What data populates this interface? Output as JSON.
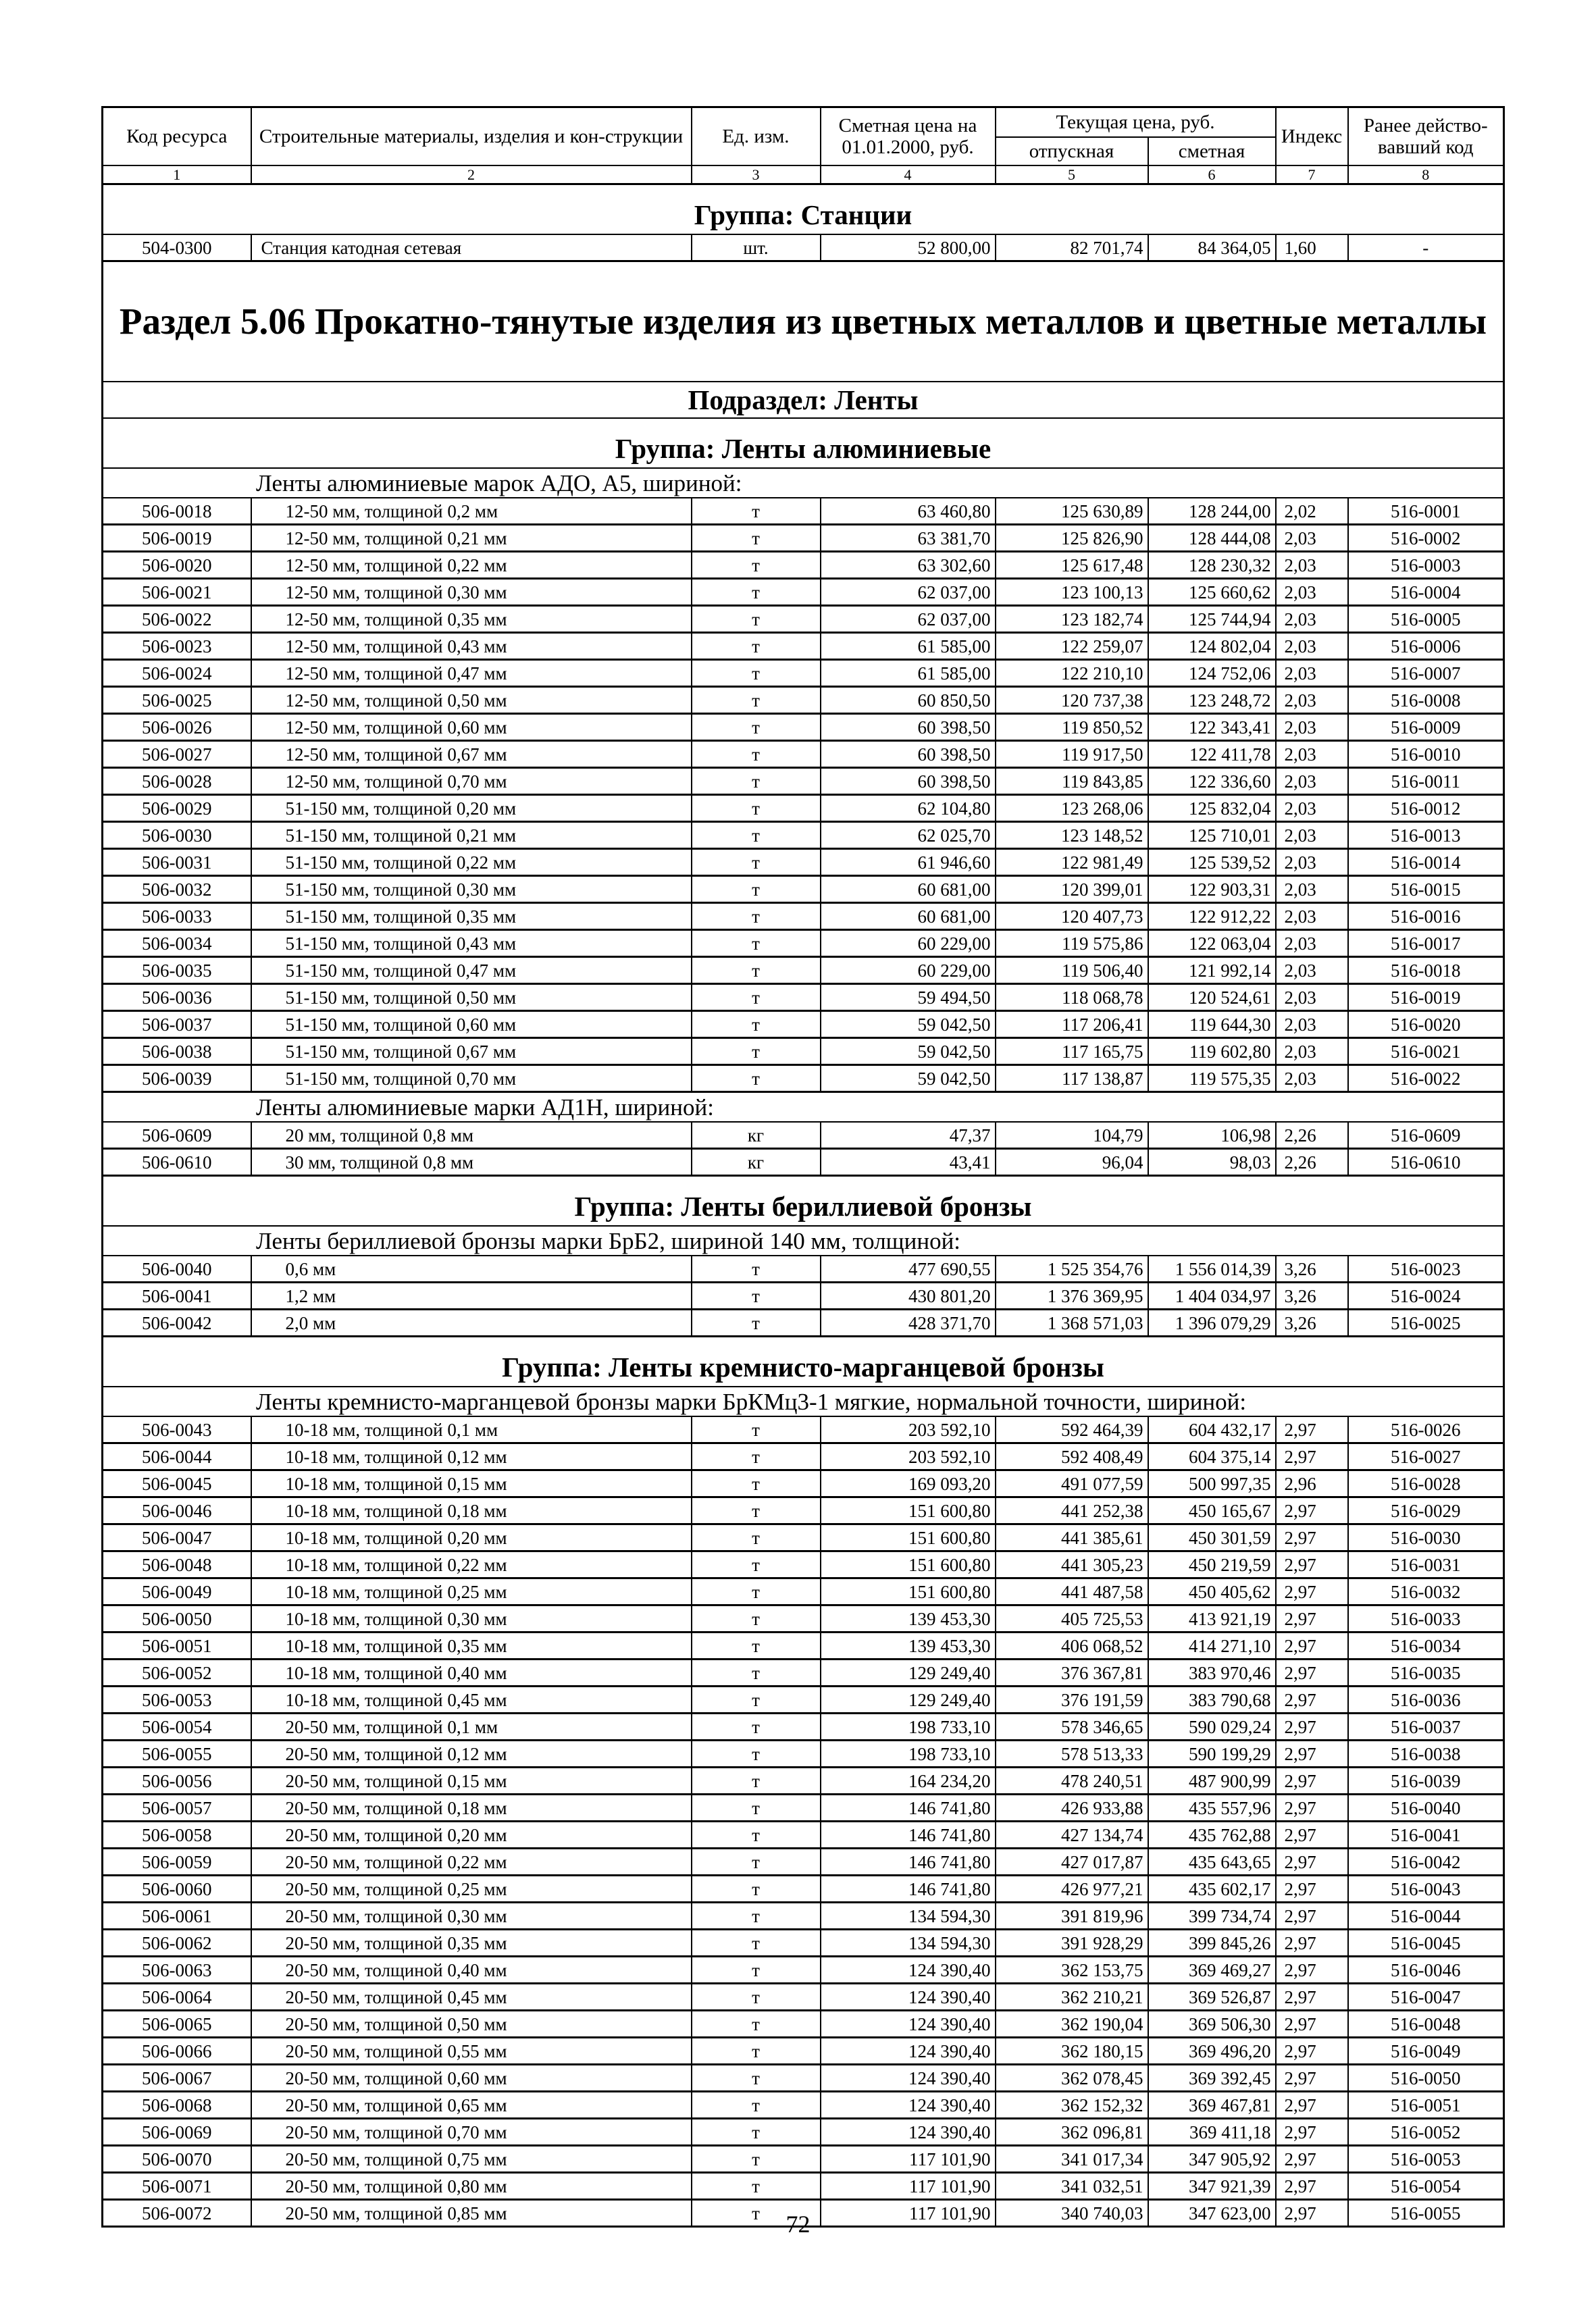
{
  "header": {
    "code": "Код ресурса",
    "name": "Строительные материалы, изделия и кон-струкции",
    "unit": "Ед. изм.",
    "base_price": "Сметная цена на 01.01.2000, руб.",
    "current_price": "Текущая цена, руб.",
    "release": "отпускная",
    "estimate": "сметная",
    "index": "Индекс",
    "old_code": "Ранее действо-вавший код",
    "numbers": [
      "1",
      "2",
      "3",
      "4",
      "5",
      "6",
      "7",
      "8"
    ]
  },
  "blocks": [
    {
      "type": "grp",
      "text": "Группа: Станции"
    },
    {
      "type": "rows",
      "plain": true,
      "rows": [
        [
          "504-0300",
          "Станция катодная сетевая",
          "шт.",
          "52 800,00",
          "82 701,74",
          "84 364,05",
          "1,60",
          "-"
        ]
      ]
    },
    {
      "type": "sec",
      "text": "Раздел 5.06 Прокатно-тянутые изделия из цветных металлов и цветные металлы"
    },
    {
      "type": "sub",
      "text": "Подраздел: Ленты"
    },
    {
      "type": "grp",
      "text": "Группа: Ленты алюминиевые"
    },
    {
      "type": "desc",
      "text": "Ленты алюминиевые марок АДО, А5, шириной:"
    },
    {
      "type": "rows",
      "rows": [
        [
          "506-0018",
          "12-50 мм, толщиной 0,2 мм",
          "т",
          "63 460,80",
          "125 630,89",
          "128 244,00",
          "2,02",
          "516-0001"
        ],
        [
          "506-0019",
          "12-50 мм, толщиной 0,21 мм",
          "т",
          "63 381,70",
          "125 826,90",
          "128 444,08",
          "2,03",
          "516-0002"
        ],
        [
          "506-0020",
          "12-50 мм, толщиной 0,22 мм",
          "т",
          "63 302,60",
          "125 617,48",
          "128 230,32",
          "2,03",
          "516-0003"
        ],
        [
          "506-0021",
          "12-50 мм, толщиной 0,30 мм",
          "т",
          "62 037,00",
          "123 100,13",
          "125 660,62",
          "2,03",
          "516-0004"
        ],
        [
          "506-0022",
          "12-50 мм, толщиной 0,35 мм",
          "т",
          "62 037,00",
          "123 182,74",
          "125 744,94",
          "2,03",
          "516-0005"
        ],
        [
          "506-0023",
          "12-50 мм, толщиной 0,43 мм",
          "т",
          "61 585,00",
          "122 259,07",
          "124 802,04",
          "2,03",
          "516-0006"
        ],
        [
          "506-0024",
          "12-50 мм, толщиной 0,47 мм",
          "т",
          "61 585,00",
          "122 210,10",
          "124 752,06",
          "2,03",
          "516-0007"
        ],
        [
          "506-0025",
          "12-50 мм, толщиной 0,50 мм",
          "т",
          "60 850,50",
          "120 737,38",
          "123 248,72",
          "2,03",
          "516-0008"
        ],
        [
          "506-0026",
          "12-50 мм, толщиной 0,60 мм",
          "т",
          "60 398,50",
          "119 850,52",
          "122 343,41",
          "2,03",
          "516-0009"
        ],
        [
          "506-0027",
          "12-50 мм, толщиной 0,67 мм",
          "т",
          "60 398,50",
          "119 917,50",
          "122 411,78",
          "2,03",
          "516-0010"
        ],
        [
          "506-0028",
          "12-50 мм, толщиной 0,70 мм",
          "т",
          "60 398,50",
          "119 843,85",
          "122 336,60",
          "2,03",
          "516-0011"
        ],
        [
          "506-0029",
          "51-150 мм, толщиной 0,20 мм",
          "т",
          "62 104,80",
          "123 268,06",
          "125 832,04",
          "2,03",
          "516-0012"
        ],
        [
          "506-0030",
          "51-150 мм, толщиной 0,21 мм",
          "т",
          "62 025,70",
          "123 148,52",
          "125 710,01",
          "2,03",
          "516-0013"
        ],
        [
          "506-0031",
          "51-150 мм, толщиной 0,22 мм",
          "т",
          "61 946,60",
          "122 981,49",
          "125 539,52",
          "2,03",
          "516-0014"
        ],
        [
          "506-0032",
          "51-150 мм, толщиной 0,30 мм",
          "т",
          "60 681,00",
          "120 399,01",
          "122 903,31",
          "2,03",
          "516-0015"
        ],
        [
          "506-0033",
          "51-150 мм, толщиной 0,35 мм",
          "т",
          "60 681,00",
          "120 407,73",
          "122 912,22",
          "2,03",
          "516-0016"
        ],
        [
          "506-0034",
          "51-150 мм, толщиной 0,43 мм",
          "т",
          "60 229,00",
          "119 575,86",
          "122 063,04",
          "2,03",
          "516-0017"
        ],
        [
          "506-0035",
          "51-150 мм, толщиной 0,47 мм",
          "т",
          "60 229,00",
          "119 506,40",
          "121 992,14",
          "2,03",
          "516-0018"
        ],
        [
          "506-0036",
          "51-150 мм, толщиной 0,50 мм",
          "т",
          "59 494,50",
          "118 068,78",
          "120 524,61",
          "2,03",
          "516-0019"
        ],
        [
          "506-0037",
          "51-150 мм, толщиной 0,60 мм",
          "т",
          "59 042,50",
          "117 206,41",
          "119 644,30",
          "2,03",
          "516-0020"
        ],
        [
          "506-0038",
          "51-150 мм, толщиной 0,67 мм",
          "т",
          "59 042,50",
          "117 165,75",
          "119 602,80",
          "2,03",
          "516-0021"
        ],
        [
          "506-0039",
          "51-150 мм, толщиной 0,70 мм",
          "т",
          "59 042,50",
          "117 138,87",
          "119 575,35",
          "2,03",
          "516-0022"
        ]
      ]
    },
    {
      "type": "desc",
      "text": "Ленты алюминиевые марки АД1Н, шириной:"
    },
    {
      "type": "rows",
      "rows": [
        [
          "506-0609",
          "20 мм, толщиной 0,8 мм",
          "кг",
          "47,37",
          "104,79",
          "106,98",
          "2,26",
          "516-0609"
        ],
        [
          "506-0610",
          "30 мм, толщиной 0,8 мм",
          "кг",
          "43,41",
          "96,04",
          "98,03",
          "2,26",
          "516-0610"
        ]
      ]
    },
    {
      "type": "grp",
      "text": "Группа: Ленты бериллиевой бронзы"
    },
    {
      "type": "desc",
      "text": "Ленты бериллиевой бронзы марки БрБ2, шириной 140 мм, толщиной:"
    },
    {
      "type": "rows",
      "rows": [
        [
          "506-0040",
          "0,6 мм",
          "т",
          "477 690,55",
          "1 525 354,76",
          "1 556 014,39",
          "3,26",
          "516-0023"
        ],
        [
          "506-0041",
          "1,2 мм",
          "т",
          "430 801,20",
          "1 376 369,95",
          "1 404 034,97",
          "3,26",
          "516-0024"
        ],
        [
          "506-0042",
          "2,0 мм",
          "т",
          "428 371,70",
          "1 368 571,03",
          "1 396 079,29",
          "3,26",
          "516-0025"
        ]
      ]
    },
    {
      "type": "grp",
      "text": "Группа: Ленты кремнисто-марганцевой бронзы"
    },
    {
      "type": "desc",
      "text": "Ленты кремнисто-марганцевой бронзы марки БрКМц3-1 мягкие, нормальной точности, шириной:"
    },
    {
      "type": "rows",
      "rows": [
        [
          "506-0043",
          "10-18 мм, толщиной 0,1 мм",
          "т",
          "203 592,10",
          "592 464,39",
          "604 432,17",
          "2,97",
          "516-0026"
        ],
        [
          "506-0044",
          "10-18 мм, толщиной 0,12 мм",
          "т",
          "203 592,10",
          "592 408,49",
          "604 375,14",
          "2,97",
          "516-0027"
        ],
        [
          "506-0045",
          "10-18 мм, толщиной 0,15 мм",
          "т",
          "169 093,20",
          "491 077,59",
          "500 997,35",
          "2,96",
          "516-0028"
        ],
        [
          "506-0046",
          "10-18 мм, толщиной 0,18 мм",
          "т",
          "151 600,80",
          "441 252,38",
          "450 165,67",
          "2,97",
          "516-0029"
        ],
        [
          "506-0047",
          "10-18 мм, толщиной 0,20 мм",
          "т",
          "151 600,80",
          "441 385,61",
          "450 301,59",
          "2,97",
          "516-0030"
        ],
        [
          "506-0048",
          "10-18 мм, толщиной 0,22 мм",
          "т",
          "151 600,80",
          "441 305,23",
          "450 219,59",
          "2,97",
          "516-0031"
        ],
        [
          "506-0049",
          "10-18 мм, толщиной 0,25 мм",
          "т",
          "151 600,80",
          "441 487,58",
          "450 405,62",
          "2,97",
          "516-0032"
        ],
        [
          "506-0050",
          "10-18 мм, толщиной 0,30 мм",
          "т",
          "139 453,30",
          "405 725,53",
          "413 921,19",
          "2,97",
          "516-0033"
        ],
        [
          "506-0051",
          "10-18 мм, толщиной 0,35 мм",
          "т",
          "139 453,30",
          "406 068,52",
          "414 271,10",
          "2,97",
          "516-0034"
        ],
        [
          "506-0052",
          "10-18 мм, толщиной 0,40 мм",
          "т",
          "129 249,40",
          "376 367,81",
          "383 970,46",
          "2,97",
          "516-0035"
        ],
        [
          "506-0053",
          "10-18 мм, толщиной 0,45 мм",
          "т",
          "129 249,40",
          "376 191,59",
          "383 790,68",
          "2,97",
          "516-0036"
        ],
        [
          "506-0054",
          "20-50 мм, толщиной 0,1 мм",
          "т",
          "198 733,10",
          "578 346,65",
          "590 029,24",
          "2,97",
          "516-0037"
        ],
        [
          "506-0055",
          "20-50 мм, толщиной 0,12 мм",
          "т",
          "198 733,10",
          "578 513,33",
          "590 199,29",
          "2,97",
          "516-0038"
        ],
        [
          "506-0056",
          "20-50 мм, толщиной 0,15 мм",
          "т",
          "164 234,20",
          "478 240,51",
          "487 900,99",
          "2,97",
          "516-0039"
        ],
        [
          "506-0057",
          "20-50 мм, толщиной 0,18 мм",
          "т",
          "146 741,80",
          "426 933,88",
          "435 557,96",
          "2,97",
          "516-0040"
        ],
        [
          "506-0058",
          "20-50 мм, толщиной 0,20 мм",
          "т",
          "146 741,80",
          "427 134,74",
          "435 762,88",
          "2,97",
          "516-0041"
        ],
        [
          "506-0059",
          "20-50 мм, толщиной 0,22 мм",
          "т",
          "146 741,80",
          "427 017,87",
          "435 643,65",
          "2,97",
          "516-0042"
        ],
        [
          "506-0060",
          "20-50 мм, толщиной 0,25 мм",
          "т",
          "146 741,80",
          "426 977,21",
          "435 602,17",
          "2,97",
          "516-0043"
        ],
        [
          "506-0061",
          "20-50 мм, толщиной 0,30 мм",
          "т",
          "134 594,30",
          "391 819,96",
          "399 734,74",
          "2,97",
          "516-0044"
        ],
        [
          "506-0062",
          "20-50 мм, толщиной 0,35 мм",
          "т",
          "134 594,30",
          "391 928,29",
          "399 845,26",
          "2,97",
          "516-0045"
        ],
        [
          "506-0063",
          "20-50 мм, толщиной 0,40 мм",
          "т",
          "124 390,40",
          "362 153,75",
          "369 469,27",
          "2,97",
          "516-0046"
        ],
        [
          "506-0064",
          "20-50 мм, толщиной 0,45 мм",
          "т",
          "124 390,40",
          "362 210,21",
          "369 526,87",
          "2,97",
          "516-0047"
        ],
        [
          "506-0065",
          "20-50 мм, толщиной 0,50 мм",
          "т",
          "124 390,40",
          "362 190,04",
          "369 506,30",
          "2,97",
          "516-0048"
        ],
        [
          "506-0066",
          "20-50 мм, толщиной 0,55 мм",
          "т",
          "124 390,40",
          "362 180,15",
          "369 496,20",
          "2,97",
          "516-0049"
        ],
        [
          "506-0067",
          "20-50 мм, толщиной 0,60 мм",
          "т",
          "124 390,40",
          "362 078,45",
          "369 392,45",
          "2,97",
          "516-0050"
        ],
        [
          "506-0068",
          "20-50 мм, толщиной 0,65 мм",
          "т",
          "124 390,40",
          "362 152,32",
          "369 467,81",
          "2,97",
          "516-0051"
        ],
        [
          "506-0069",
          "20-50 мм, толщиной 0,70 мм",
          "т",
          "124 390,40",
          "362 096,81",
          "369 411,18",
          "2,97",
          "516-0052"
        ],
        [
          "506-0070",
          "20-50 мм, толщиной 0,75 мм",
          "т",
          "117 101,90",
          "341 017,34",
          "347 905,92",
          "2,97",
          "516-0053"
        ],
        [
          "506-0071",
          "20-50 мм, толщиной 0,80 мм",
          "т",
          "117 101,90",
          "341 032,51",
          "347 921,39",
          "2,97",
          "516-0054"
        ],
        [
          "506-0072",
          "20-50 мм, толщиной 0,85 мм",
          "т",
          "117 101,90",
          "340 740,03",
          "347 623,00",
          "2,97",
          "516-0055"
        ]
      ]
    }
  ],
  "page_number": "72"
}
